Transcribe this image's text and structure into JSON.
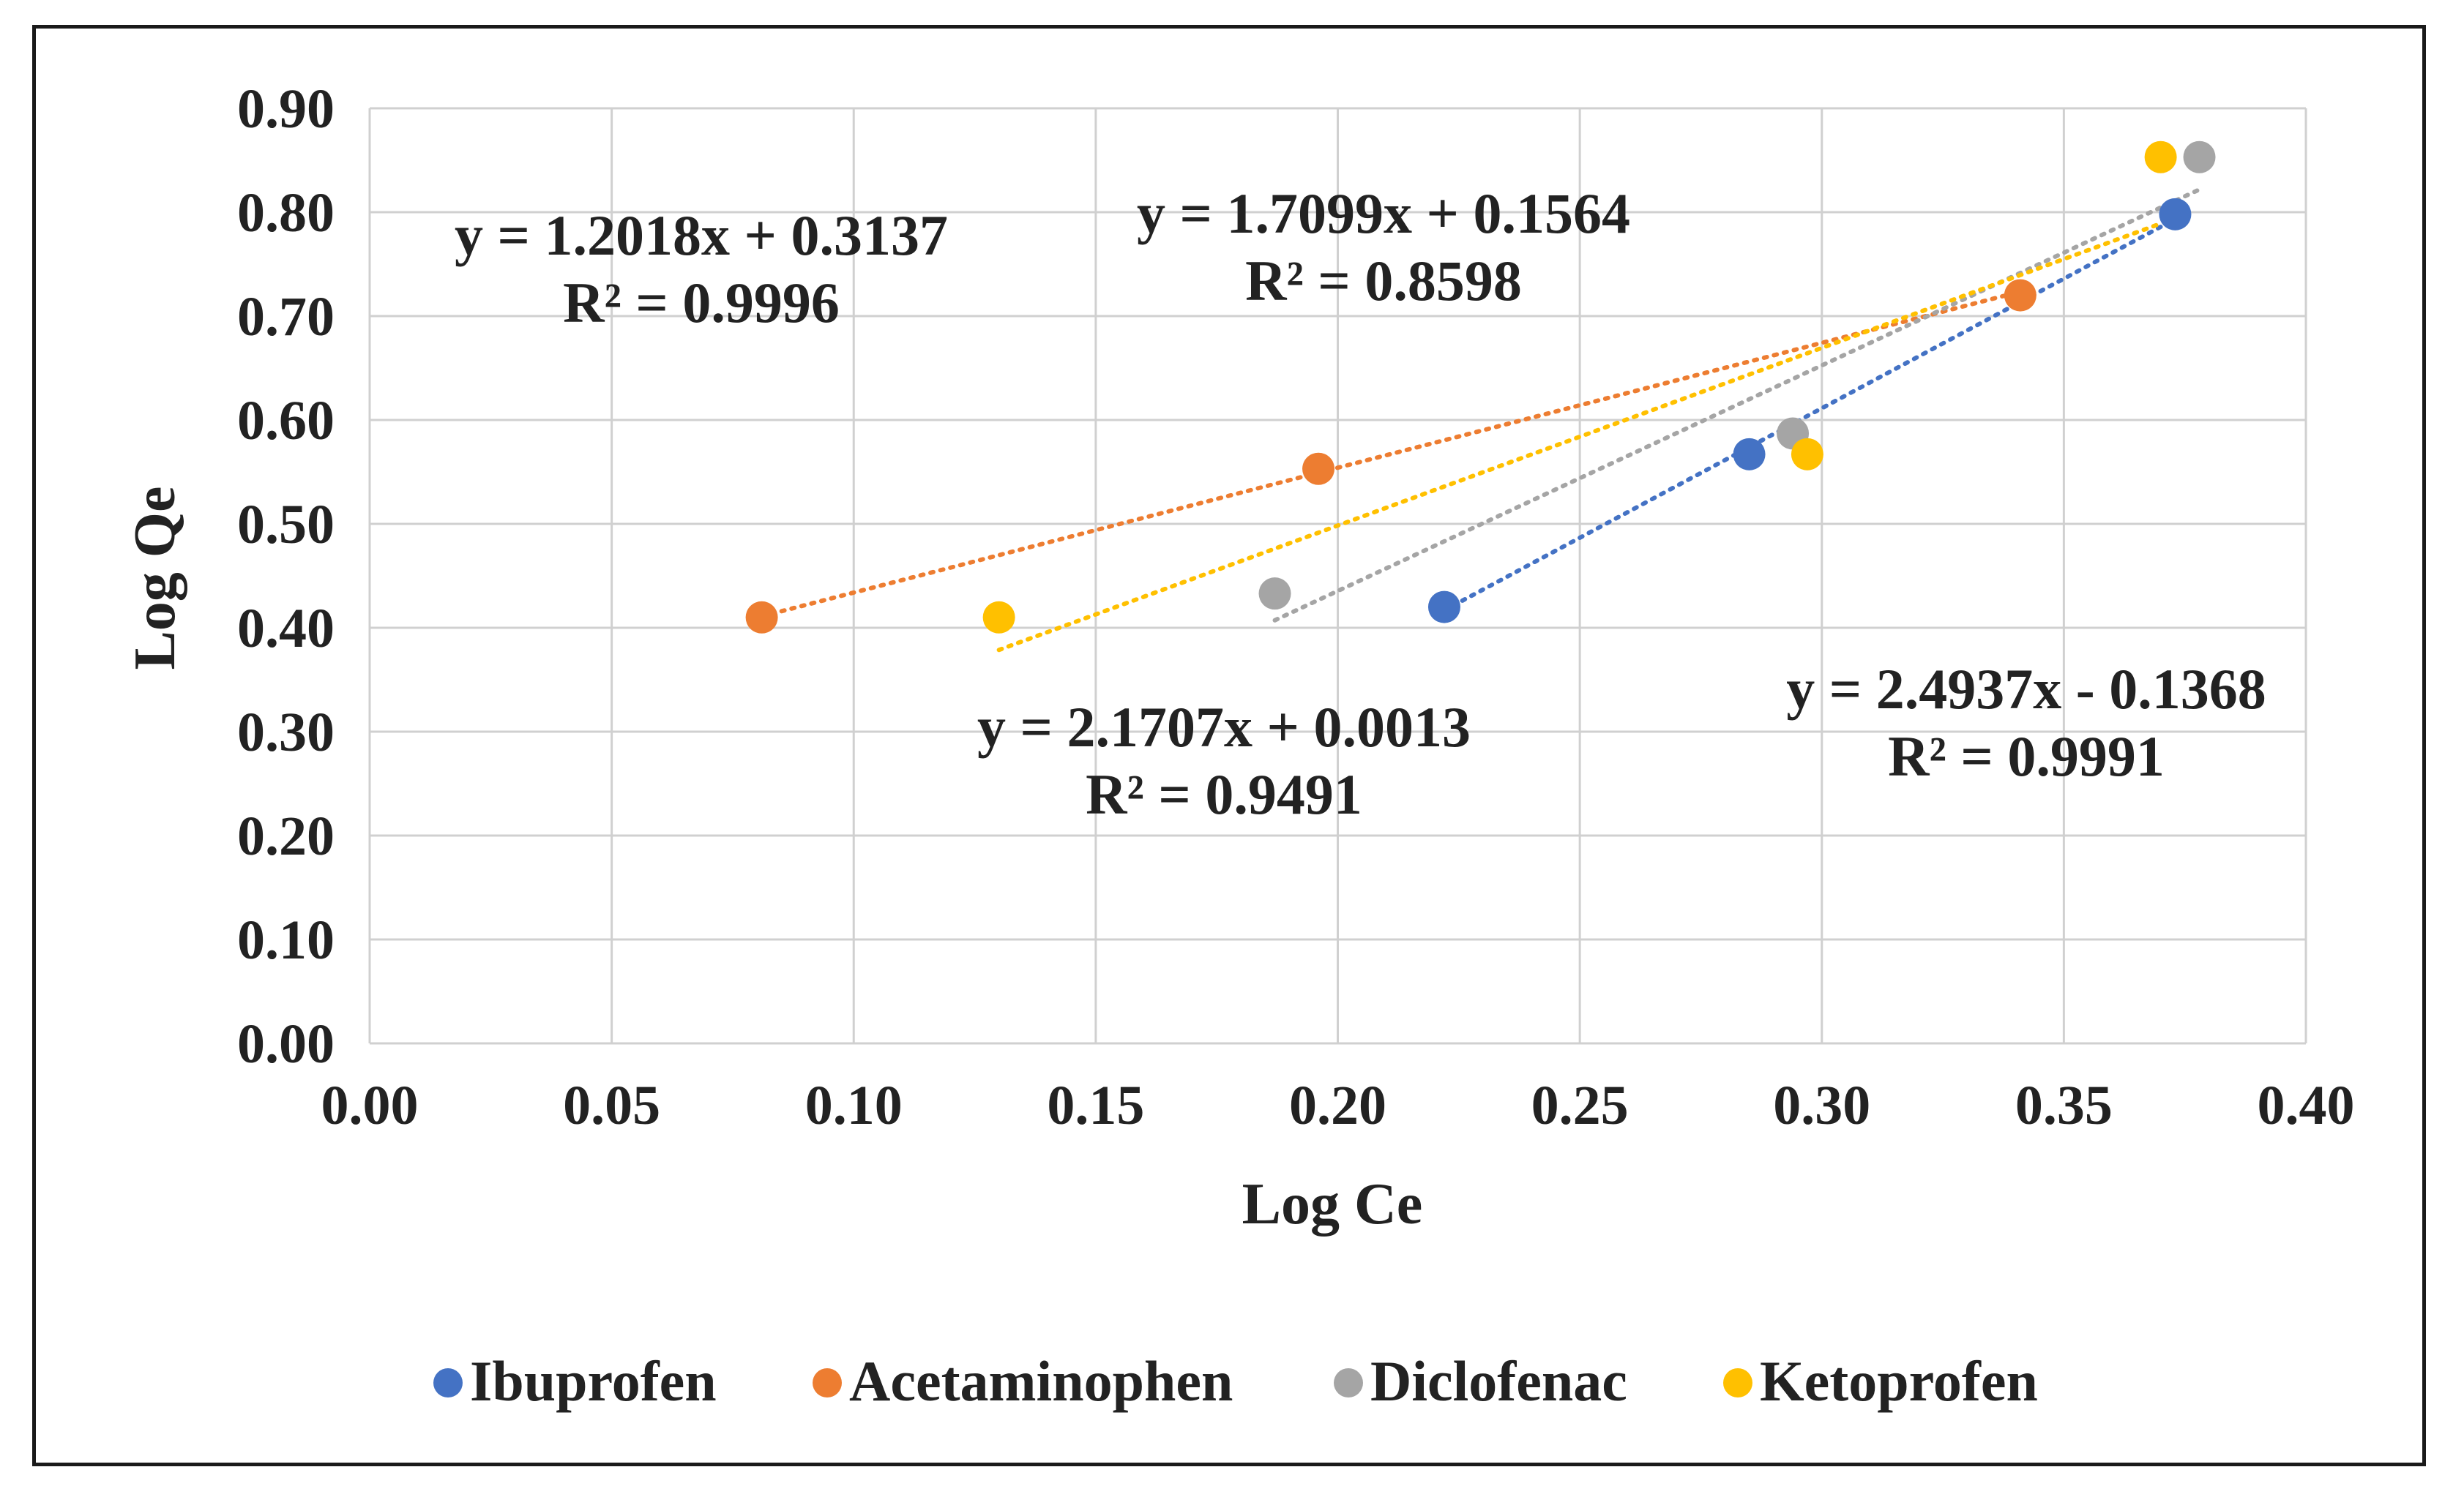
{
  "chart_data": {
    "type": "scatter",
    "xlabel": "Log Ce",
    "ylabel": "Log Qe",
    "xlim": [
      0.0,
      0.4
    ],
    "ylim": [
      0.0,
      0.9
    ],
    "x_ticks": [
      "0.00",
      "0.05",
      "0.10",
      "0.15",
      "0.20",
      "0.25",
      "0.30",
      "0.35",
      "0.40"
    ],
    "y_ticks": [
      "0.00",
      "0.10",
      "0.20",
      "0.30",
      "0.40",
      "0.50",
      "0.60",
      "0.70",
      "0.80",
      "0.90"
    ],
    "grid": true,
    "legend_position": "bottom",
    "series": [
      {
        "name": "Ibuprofen",
        "color": "#4472C4",
        "points": [
          [
            0.222,
            0.42
          ],
          [
            0.285,
            0.567
          ],
          [
            0.373,
            0.798
          ]
        ],
        "trendline": {
          "slope": 2.4937,
          "intercept": -0.1368
        },
        "equation": "y = 2.4937x - 0.1368",
        "r2": "R² = 0.9991"
      },
      {
        "name": "Acetaminophen",
        "color": "#ED7D31",
        "points": [
          [
            0.081,
            0.41
          ],
          [
            0.196,
            0.553
          ],
          [
            0.341,
            0.72
          ]
        ],
        "trendline": {
          "slope": 1.2018,
          "intercept": 0.3137
        },
        "equation": "y = 1.2018x + 0.3137",
        "r2": "R² = 0.9996"
      },
      {
        "name": "Diclofenac",
        "color": "#A5A5A5",
        "points": [
          [
            0.187,
            0.433
          ],
          [
            0.294,
            0.587
          ],
          [
            0.378,
            0.853
          ]
        ],
        "trendline": {
          "slope": 2.1707,
          "intercept": 0.0013
        },
        "equation": "y = 2.1707x + 0.0013",
        "r2": "R² = 0.9491"
      },
      {
        "name": "Ketoprofen",
        "color": "#FFC000",
        "points": [
          [
            0.13,
            0.41
          ],
          [
            0.297,
            0.567
          ],
          [
            0.37,
            0.853
          ]
        ],
        "trendline": {
          "slope": 1.7099,
          "intercept": 0.1564
        },
        "equation": "y = 1.7099x + 0.1564",
        "r2": "R² = 0.8598"
      }
    ]
  }
}
